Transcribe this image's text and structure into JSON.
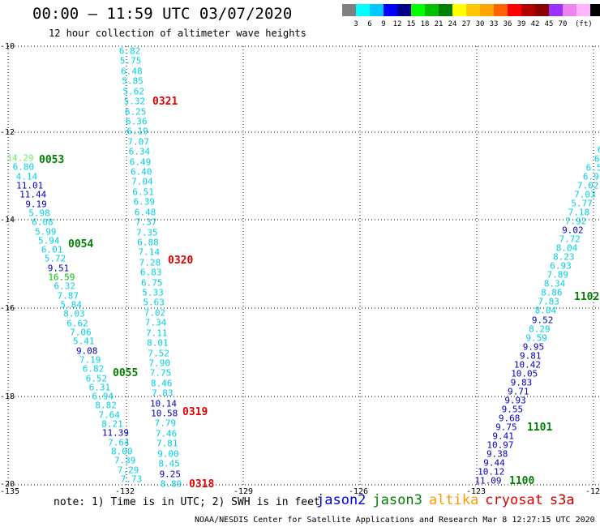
{
  "title": "00:00 – 11:59 UTC 03/07/2020",
  "subtitle": "12 hour collection of altimeter wave heights",
  "legend": {
    "colors": [
      "#808080",
      "#00ffff",
      "#00c8ff",
      "#0000ff",
      "#00008b",
      "#00ff00",
      "#00c000",
      "#008000",
      "#ffff00",
      "#ffc800",
      "#ffa500",
      "#ff6400",
      "#ff0000",
      "#b00000",
      "#8b0000",
      "#9b30ff",
      "#ee82ee",
      "#ffb6ff",
      "#000000"
    ],
    "labels": [
      "3",
      "6",
      "9",
      "12",
      "15",
      "18",
      "21",
      "24",
      "27",
      "30",
      "33",
      "36",
      "39",
      "42",
      "45",
      "70",
      "(ft)"
    ],
    "label_offsets": [
      0,
      1,
      2,
      3,
      4,
      5,
      6,
      7,
      8,
      9,
      10,
      11,
      12,
      13,
      14,
      15,
      16
    ]
  },
  "axes": {
    "y_ticks": [
      "-10",
      "-12",
      "-14",
      "-16",
      "-18",
      "-20"
    ],
    "x_ticks": [
      "-135",
      "-132",
      "-129",
      "-126",
      "-123",
      "-12"
    ]
  },
  "passes": [
    {
      "label": "0321",
      "color": "#e00000"
    },
    {
      "label": "0320",
      "color": "#e00000"
    },
    {
      "label": "0319",
      "color": "#e00000"
    },
    {
      "label": "0318",
      "color": "#e00000"
    },
    {
      "label": "0053",
      "color": "#008000"
    },
    {
      "label": "0054",
      "color": "#008000"
    },
    {
      "label": "0055",
      "color": "#008000"
    },
    {
      "label": "1102",
      "color": "#008000"
    },
    {
      "label": "1101",
      "color": "#008000"
    },
    {
      "label": "1100",
      "color": "#008000"
    }
  ],
  "track_a": [
    "6.82",
    "5.75",
    "6.48",
    "5.85",
    "5.62",
    "5.32",
    "6.25",
    "6.36",
    "6.19",
    "7.07",
    "6.34",
    "6.49",
    "6.40",
    "7.04",
    "6.51",
    "6.39",
    "6.48",
    "7.37",
    "7.35",
    "6.88",
    "7.14",
    "7.28",
    "6.83",
    "6.75",
    "5.33",
    "5.63",
    "7.02",
    "7.34",
    "7.11",
    "8.01",
    "7.52",
    "7.90",
    "7.75",
    "8.46",
    "7.83",
    "10.14",
    "10.58",
    "7.79",
    "7.46",
    "7.81",
    "9.00",
    "8.45",
    "9.25",
    "8.89"
  ],
  "track_a_colors": [
    "c",
    "c",
    "c",
    "c",
    "c",
    "c",
    "c",
    "c",
    "c",
    "c",
    "c",
    "c",
    "c",
    "c",
    "c",
    "c",
    "c",
    "c",
    "c",
    "c",
    "c",
    "c",
    "c",
    "c",
    "c",
    "c",
    "c",
    "c",
    "c",
    "c",
    "c",
    "c",
    "c",
    "c",
    "c",
    "b",
    "b",
    "c",
    "c",
    "c",
    "c",
    "c",
    "b",
    "c"
  ],
  "track_b": [
    "14.29",
    "6.80",
    "4.14",
    "11.01",
    "11.44",
    "9.19",
    "5.98",
    "6.08",
    "5.99",
    "5.94",
    "6.01",
    "5.72",
    "9.51",
    "16.59",
    "6.32",
    "7.87",
    "5.84",
    "8.03",
    "6.62",
    "7.06",
    "5.41",
    "9.08",
    "7.19",
    "6.82",
    "6.52",
    "6.31",
    "6.94",
    "8.82",
    "7.64",
    "8.21",
    "11.39",
    "7.64",
    "8.00",
    "7.39",
    "7.29",
    "7.73"
  ],
  "track_b_colors": [
    "lg",
    "c",
    "c",
    "b",
    "b",
    "b",
    "c",
    "c",
    "c",
    "c",
    "c",
    "c",
    "b",
    "g",
    "c",
    "c",
    "c",
    "c",
    "c",
    "c",
    "c",
    "b",
    "c",
    "c",
    "c",
    "c",
    "c",
    "c",
    "c",
    "c",
    "b",
    "c",
    "c",
    "c",
    "c",
    "c"
  ],
  "track_c": [
    "6",
    "6",
    "6.5",
    "6.9",
    "7.02",
    "7.03",
    "5.77",
    "7.18",
    "7.92",
    "9.02",
    "7.72",
    "8.04",
    "8.23",
    "6.93",
    "7.89",
    "8.34",
    "8.86",
    "7.83",
    "8.04",
    "9.52",
    "8.29",
    "9.59",
    "9.95",
    "9.81",
    "10.42",
    "10.05",
    "9.83",
    "9.71",
    "9.93",
    "9.55",
    "9.68",
    "9.75",
    "9.41",
    "10.97",
    "9.38",
    "9.44",
    "10.12",
    "11.09"
  ],
  "track_c_colors": [
    "c",
    "c",
    "c",
    "c",
    "c",
    "c",
    "c",
    "c",
    "c",
    "b",
    "c",
    "c",
    "c",
    "c",
    "c",
    "c",
    "c",
    "c",
    "c",
    "b",
    "c",
    "c",
    "b",
    "b",
    "b",
    "b",
    "b",
    "b",
    "b",
    "b",
    "b",
    "b",
    "b",
    "b",
    "b",
    "b",
    "b",
    "b"
  ],
  "note": "note: 1) Time is in UTC; 2) SWH is in feet",
  "satellites": [
    {
      "name": "jason2",
      "color": "#0000e0"
    },
    {
      "name": "jason3",
      "color": "#008000"
    },
    {
      "name": "altika",
      "color": "#ff9900"
    },
    {
      "name": "cryosat",
      "color": "#e00000"
    },
    {
      "name": "s3a",
      "color": "#c00000"
    }
  ],
  "credit": "NOAA/NESDIS Center for Satellite Applications and Research   Mar  8 12:27:15 UTC 2020"
}
